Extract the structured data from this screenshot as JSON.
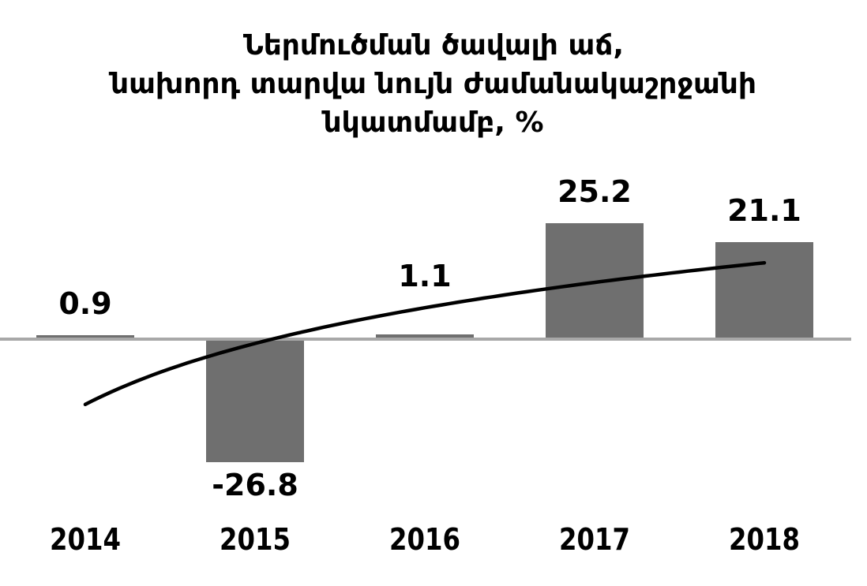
{
  "chart_data": {
    "type": "bar",
    "title_lines": [
      "Ներմուծման ծավալի աճ,",
      "նախորդ տարվա նույն ժամանակաշրջանի",
      "նկատմամբ, %"
    ],
    "title": "Ներմուծման ծավալի աճ, նախորդ տարվա նույն ժամանակաշրջանի նկատմամբ, %",
    "categories": [
      "2014",
      "2015",
      "2016",
      "2017",
      "2018"
    ],
    "values": [
      0.9,
      -26.8,
      1.1,
      25.2,
      21.1
    ],
    "data_labels": [
      "0.9",
      "-26.8",
      "1.1",
      "25.2",
      "21.1"
    ],
    "trendline": {
      "shape": "logarithmic",
      "color": "#000000",
      "values_at_categories": [
        -14.2,
        -0.9,
        6.8,
        12.3,
        16.6
      ]
    },
    "xlabel": "",
    "ylabel": "",
    "ylim": [
      -36,
      38
    ],
    "axes": {
      "y_axis_visible": false,
      "gridlines": false,
      "zero_line_visible": true,
      "x_ticks": [
        "2014",
        "2015",
        "2016",
        "2017",
        "2018"
      ]
    },
    "legend": {
      "visible": false
    },
    "colors": {
      "bar": "#6F6F6F",
      "zero_line": "#A8A8A8",
      "text": "#000000",
      "background": "#FFFFFF"
    },
    "layout_hints": {
      "label_position": "outside_end",
      "label_dy": [
        0,
        0,
        -34,
        0,
        0
      ]
    }
  }
}
